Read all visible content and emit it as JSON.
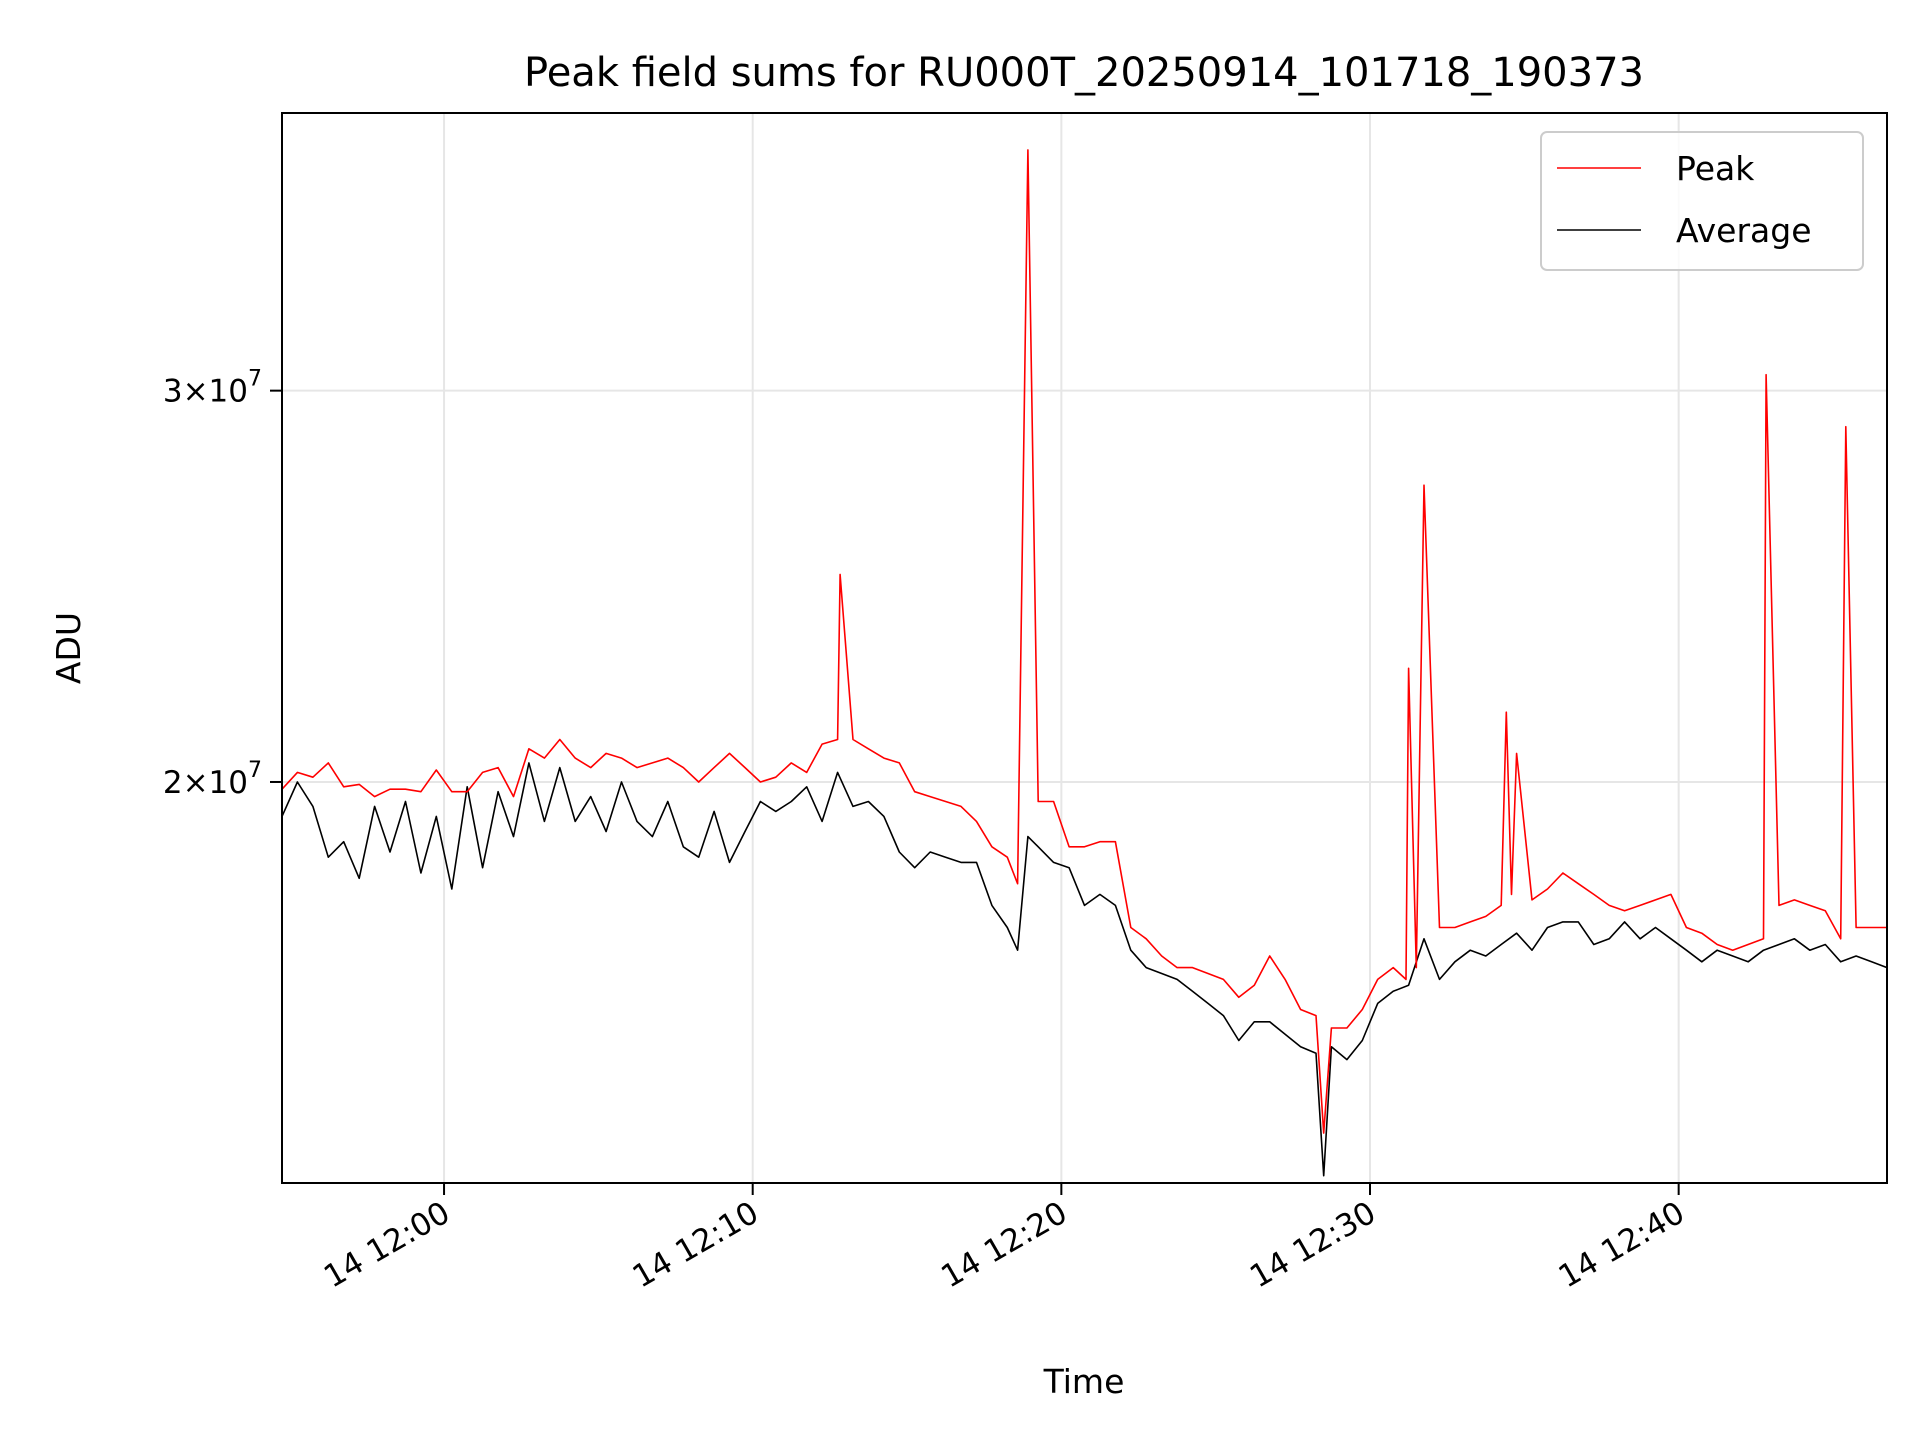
{
  "chart_data": {
    "type": "line",
    "title": "Peak field sums for RU000T_20250914_101718_190373",
    "xlabel": "Time",
    "ylabel": "ADU",
    "xlim": [
      "14 11:54:45",
      "14 12:46:45"
    ],
    "ylim": [
      13200000,
      40000000
    ],
    "yscale": "log",
    "grid": true,
    "legend_position": "top-right",
    "x_ticks": [
      {
        "value": "14 12:00",
        "label": "14 12:00"
      },
      {
        "value": "14 12:10",
        "label": "14 12:10"
      },
      {
        "value": "14 12:20",
        "label": "14 12:20"
      },
      {
        "value": "14 12:30",
        "label": "14 12:30"
      },
      {
        "value": "14 12:40",
        "label": "14 12:40"
      }
    ],
    "y_ticks": [
      {
        "value": 20000000,
        "label_base": "2×10",
        "label_exp": "7"
      },
      {
        "value": 30000000,
        "label_base": "3×10",
        "label_exp": "7"
      }
    ],
    "series": [
      {
        "name": "Peak",
        "color": "#ff0000",
        "points": [
          [
            "14 11:54:45",
            19850000
          ],
          [
            "14 11:55:15",
            20200000
          ],
          [
            "14 11:55:45",
            20100000
          ],
          [
            "14 11:56:15",
            20400000
          ],
          [
            "14 11:56:45",
            19900000
          ],
          [
            "14 11:57:15",
            19950000
          ],
          [
            "14 11:57:45",
            19700000
          ],
          [
            "14 11:58:15",
            19850000
          ],
          [
            "14 11:58:45",
            19850000
          ],
          [
            "14 11:59:15",
            19800000
          ],
          [
            "14 11:59:45",
            20250000
          ],
          [
            "14 12:00:15",
            19800000
          ],
          [
            "14 12:00:45",
            19800000
          ],
          [
            "14 12:01:15",
            20200000
          ],
          [
            "14 12:01:45",
            20300000
          ],
          [
            "14 12:02:15",
            19700000
          ],
          [
            "14 12:02:45",
            20700000
          ],
          [
            "14 12:03:15",
            20500000
          ],
          [
            "14 12:03:45",
            20900000
          ],
          [
            "14 12:04:15",
            20500000
          ],
          [
            "14 12:04:45",
            20300000
          ],
          [
            "14 12:05:15",
            20600000
          ],
          [
            "14 12:05:45",
            20500000
          ],
          [
            "14 12:06:15",
            20300000
          ],
          [
            "14 12:06:45",
            20400000
          ],
          [
            "14 12:07:15",
            20500000
          ],
          [
            "14 12:07:45",
            20300000
          ],
          [
            "14 12:08:15",
            20000000
          ],
          [
            "14 12:08:45",
            20300000
          ],
          [
            "14 12:09:15",
            20600000
          ],
          [
            "14 12:09:45",
            20300000
          ],
          [
            "14 12:10:15",
            20000000
          ],
          [
            "14 12:10:45",
            20100000
          ],
          [
            "14 12:11:15",
            20400000
          ],
          [
            "14 12:11:45",
            20200000
          ],
          [
            "14 12:12:15",
            20800000
          ],
          [
            "14 12:12:45",
            20900000
          ],
          [
            "14 12:12:50",
            24800000
          ],
          [
            "14 12:13:15",
            20900000
          ],
          [
            "14 12:13:45",
            20700000
          ],
          [
            "14 12:14:15",
            20500000
          ],
          [
            "14 12:14:45",
            20400000
          ],
          [
            "14 12:15:15",
            19800000
          ],
          [
            "14 12:15:45",
            19700000
          ],
          [
            "14 12:16:15",
            19600000
          ],
          [
            "14 12:16:45",
            19500000
          ],
          [
            "14 12:17:15",
            19200000
          ],
          [
            "14 12:17:45",
            18700000
          ],
          [
            "14 12:18:15",
            18500000
          ],
          [
            "14 12:18:35",
            18000000
          ],
          [
            "14 12:18:55",
            38500000
          ],
          [
            "14 12:19:15",
            19600000
          ],
          [
            "14 12:19:45",
            19600000
          ],
          [
            "14 12:20:15",
            18700000
          ],
          [
            "14 12:20:45",
            18700000
          ],
          [
            "14 12:21:15",
            18800000
          ],
          [
            "14 12:21:45",
            18800000
          ],
          [
            "14 12:22:15",
            17200000
          ],
          [
            "14 12:22:45",
            17000000
          ],
          [
            "14 12:23:15",
            16700000
          ],
          [
            "14 12:23:45",
            16500000
          ],
          [
            "14 12:24:15",
            16500000
          ],
          [
            "14 12:24:45",
            16400000
          ],
          [
            "14 12:25:15",
            16300000
          ],
          [
            "14 12:25:45",
            16000000
          ],
          [
            "14 12:26:15",
            16200000
          ],
          [
            "14 12:26:45",
            16700000
          ],
          [
            "14 12:27:15",
            16300000
          ],
          [
            "14 12:27:45",
            15800000
          ],
          [
            "14 12:28:15",
            15700000
          ],
          [
            "14 12:28:30",
            13900000
          ],
          [
            "14 12:28:45",
            15500000
          ],
          [
            "14 12:29:15",
            15500000
          ],
          [
            "14 12:29:45",
            15800000
          ],
          [
            "14 12:30:15",
            16300000
          ],
          [
            "14 12:30:45",
            16500000
          ],
          [
            "14 12:31:10",
            16300000
          ],
          [
            "14 12:31:15",
            22500000
          ],
          [
            "14 12:31:30",
            16500000
          ],
          [
            "14 12:31:45",
            27200000
          ],
          [
            "14 12:32:15",
            17200000
          ],
          [
            "14 12:32:45",
            17200000
          ],
          [
            "14 12:33:15",
            17300000
          ],
          [
            "14 12:33:45",
            17400000
          ],
          [
            "14 12:34:15",
            17600000
          ],
          [
            "14 12:34:25",
            21500000
          ],
          [
            "14 12:34:35",
            17800000
          ],
          [
            "14 12:34:45",
            20600000
          ],
          [
            "14 12:35:15",
            17700000
          ],
          [
            "14 12:35:45",
            17900000
          ],
          [
            "14 12:36:15",
            18200000
          ],
          [
            "14 12:36:45",
            18000000
          ],
          [
            "14 12:37:15",
            17800000
          ],
          [
            "14 12:37:45",
            17600000
          ],
          [
            "14 12:38:15",
            17500000
          ],
          [
            "14 12:38:45",
            17600000
          ],
          [
            "14 12:39:15",
            17700000
          ],
          [
            "14 12:39:45",
            17800000
          ],
          [
            "14 12:40:15",
            17200000
          ],
          [
            "14 12:40:45",
            17100000
          ],
          [
            "14 12:41:15",
            16900000
          ],
          [
            "14 12:41:45",
            16800000
          ],
          [
            "14 12:42:15",
            16900000
          ],
          [
            "14 12:42:45",
            17000000
          ],
          [
            "14 12:42:50",
            30500000
          ],
          [
            "14 12:43:15",
            17600000
          ],
          [
            "14 12:43:45",
            17700000
          ],
          [
            "14 12:44:15",
            17600000
          ],
          [
            "14 12:44:45",
            17500000
          ],
          [
            "14 12:45:15",
            17000000
          ],
          [
            "14 12:45:25",
            28900000
          ],
          [
            "14 12:45:45",
            17200000
          ],
          [
            "14 12:46:15",
            17200000
          ],
          [
            "14 12:46:45",
            17200000
          ]
        ]
      },
      {
        "name": "Average",
        "color": "#000000",
        "points": [
          [
            "14 11:54:45",
            19300000
          ],
          [
            "14 11:55:15",
            20000000
          ],
          [
            "14 11:55:45",
            19500000
          ],
          [
            "14 11:56:15",
            18500000
          ],
          [
            "14 11:56:45",
            18800000
          ],
          [
            "14 11:57:15",
            18100000
          ],
          [
            "14 11:57:45",
            19500000
          ],
          [
            "14 11:58:15",
            18600000
          ],
          [
            "14 11:58:45",
            19600000
          ],
          [
            "14 11:59:15",
            18200000
          ],
          [
            "14 11:59:45",
            19300000
          ],
          [
            "14 12:00:15",
            17900000
          ],
          [
            "14 12:00:45",
            19900000
          ],
          [
            "14 12:01:15",
            18300000
          ],
          [
            "14 12:01:45",
            19800000
          ],
          [
            "14 12:02:15",
            18900000
          ],
          [
            "14 12:02:45",
            20400000
          ],
          [
            "14 12:03:15",
            19200000
          ],
          [
            "14 12:03:45",
            20300000
          ],
          [
            "14 12:04:15",
            19200000
          ],
          [
            "14 12:04:45",
            19700000
          ],
          [
            "14 12:05:15",
            19000000
          ],
          [
            "14 12:05:45",
            20000000
          ],
          [
            "14 12:06:15",
            19200000
          ],
          [
            "14 12:06:45",
            18900000
          ],
          [
            "14 12:07:15",
            19600000
          ],
          [
            "14 12:07:45",
            18700000
          ],
          [
            "14 12:08:15",
            18500000
          ],
          [
            "14 12:08:45",
            19400000
          ],
          [
            "14 12:09:15",
            18400000
          ],
          [
            "14 12:09:45",
            19000000
          ],
          [
            "14 12:10:15",
            19600000
          ],
          [
            "14 12:10:45",
            19400000
          ],
          [
            "14 12:11:15",
            19600000
          ],
          [
            "14 12:11:45",
            19900000
          ],
          [
            "14 12:12:15",
            19200000
          ],
          [
            "14 12:12:45",
            20200000
          ],
          [
            "14 12:13:15",
            19500000
          ],
          [
            "14 12:13:45",
            19600000
          ],
          [
            "14 12:14:15",
            19300000
          ],
          [
            "14 12:14:45",
            18600000
          ],
          [
            "14 12:15:15",
            18300000
          ],
          [
            "14 12:15:45",
            18600000
          ],
          [
            "14 12:16:15",
            18500000
          ],
          [
            "14 12:16:45",
            18400000
          ],
          [
            "14 12:17:15",
            18400000
          ],
          [
            "14 12:17:45",
            17600000
          ],
          [
            "14 12:18:15",
            17200000
          ],
          [
            "14 12:18:35",
            16800000
          ],
          [
            "14 12:18:55",
            18900000
          ],
          [
            "14 12:19:15",
            18700000
          ],
          [
            "14 12:19:45",
            18400000
          ],
          [
            "14 12:20:15",
            18300000
          ],
          [
            "14 12:20:45",
            17600000
          ],
          [
            "14 12:21:15",
            17800000
          ],
          [
            "14 12:21:45",
            17600000
          ],
          [
            "14 12:22:15",
            16800000
          ],
          [
            "14 12:22:45",
            16500000
          ],
          [
            "14 12:23:15",
            16400000
          ],
          [
            "14 12:23:45",
            16300000
          ],
          [
            "14 12:24:15",
            16100000
          ],
          [
            "14 12:24:45",
            15900000
          ],
          [
            "14 12:25:15",
            15700000
          ],
          [
            "14 12:25:45",
            15300000
          ],
          [
            "14 12:26:15",
            15600000
          ],
          [
            "14 12:26:45",
            15600000
          ],
          [
            "14 12:27:15",
            15400000
          ],
          [
            "14 12:27:45",
            15200000
          ],
          [
            "14 12:28:15",
            15100000
          ],
          [
            "14 12:28:30",
            13300000
          ],
          [
            "14 12:28:45",
            15200000
          ],
          [
            "14 12:29:15",
            15000000
          ],
          [
            "14 12:29:45",
            15300000
          ],
          [
            "14 12:30:15",
            15900000
          ],
          [
            "14 12:30:45",
            16100000
          ],
          [
            "14 12:31:15",
            16200000
          ],
          [
            "14 12:31:45",
            17000000
          ],
          [
            "14 12:32:15",
            16300000
          ],
          [
            "14 12:32:45",
            16600000
          ],
          [
            "14 12:33:15",
            16800000
          ],
          [
            "14 12:33:45",
            16700000
          ],
          [
            "14 12:34:15",
            16900000
          ],
          [
            "14 12:34:45",
            17100000
          ],
          [
            "14 12:35:15",
            16800000
          ],
          [
            "14 12:35:45",
            17200000
          ],
          [
            "14 12:36:15",
            17300000
          ],
          [
            "14 12:36:45",
            17300000
          ],
          [
            "14 12:37:15",
            16900000
          ],
          [
            "14 12:37:45",
            17000000
          ],
          [
            "14 12:38:15",
            17300000
          ],
          [
            "14 12:38:45",
            17000000
          ],
          [
            "14 12:39:15",
            17200000
          ],
          [
            "14 12:39:45",
            17000000
          ],
          [
            "14 12:40:15",
            16800000
          ],
          [
            "14 12:40:45",
            16600000
          ],
          [
            "14 12:41:15",
            16800000
          ],
          [
            "14 12:41:45",
            16700000
          ],
          [
            "14 12:42:15",
            16600000
          ],
          [
            "14 12:42:45",
            16800000
          ],
          [
            "14 12:43:15",
            16900000
          ],
          [
            "14 12:43:45",
            17000000
          ],
          [
            "14 12:44:15",
            16800000
          ],
          [
            "14 12:44:45",
            16900000
          ],
          [
            "14 12:45:15",
            16600000
          ],
          [
            "14 12:45:45",
            16700000
          ],
          [
            "14 12:46:15",
            16600000
          ],
          [
            "14 12:46:45",
            16500000
          ]
        ]
      }
    ]
  }
}
